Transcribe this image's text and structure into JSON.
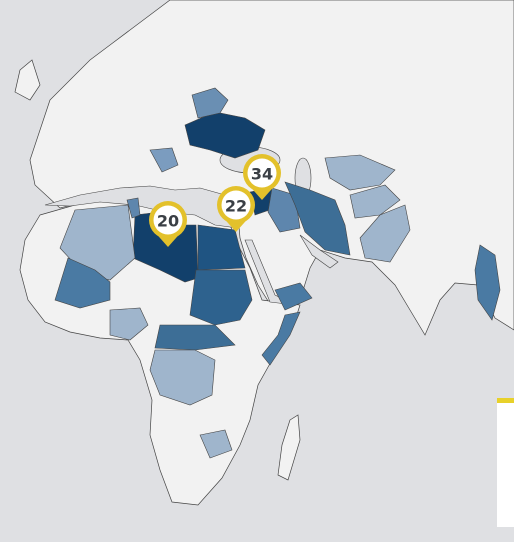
{
  "markers": [
    {
      "label": "20"
    },
    {
      "label": "22"
    },
    {
      "label": "34"
    }
  ]
}
